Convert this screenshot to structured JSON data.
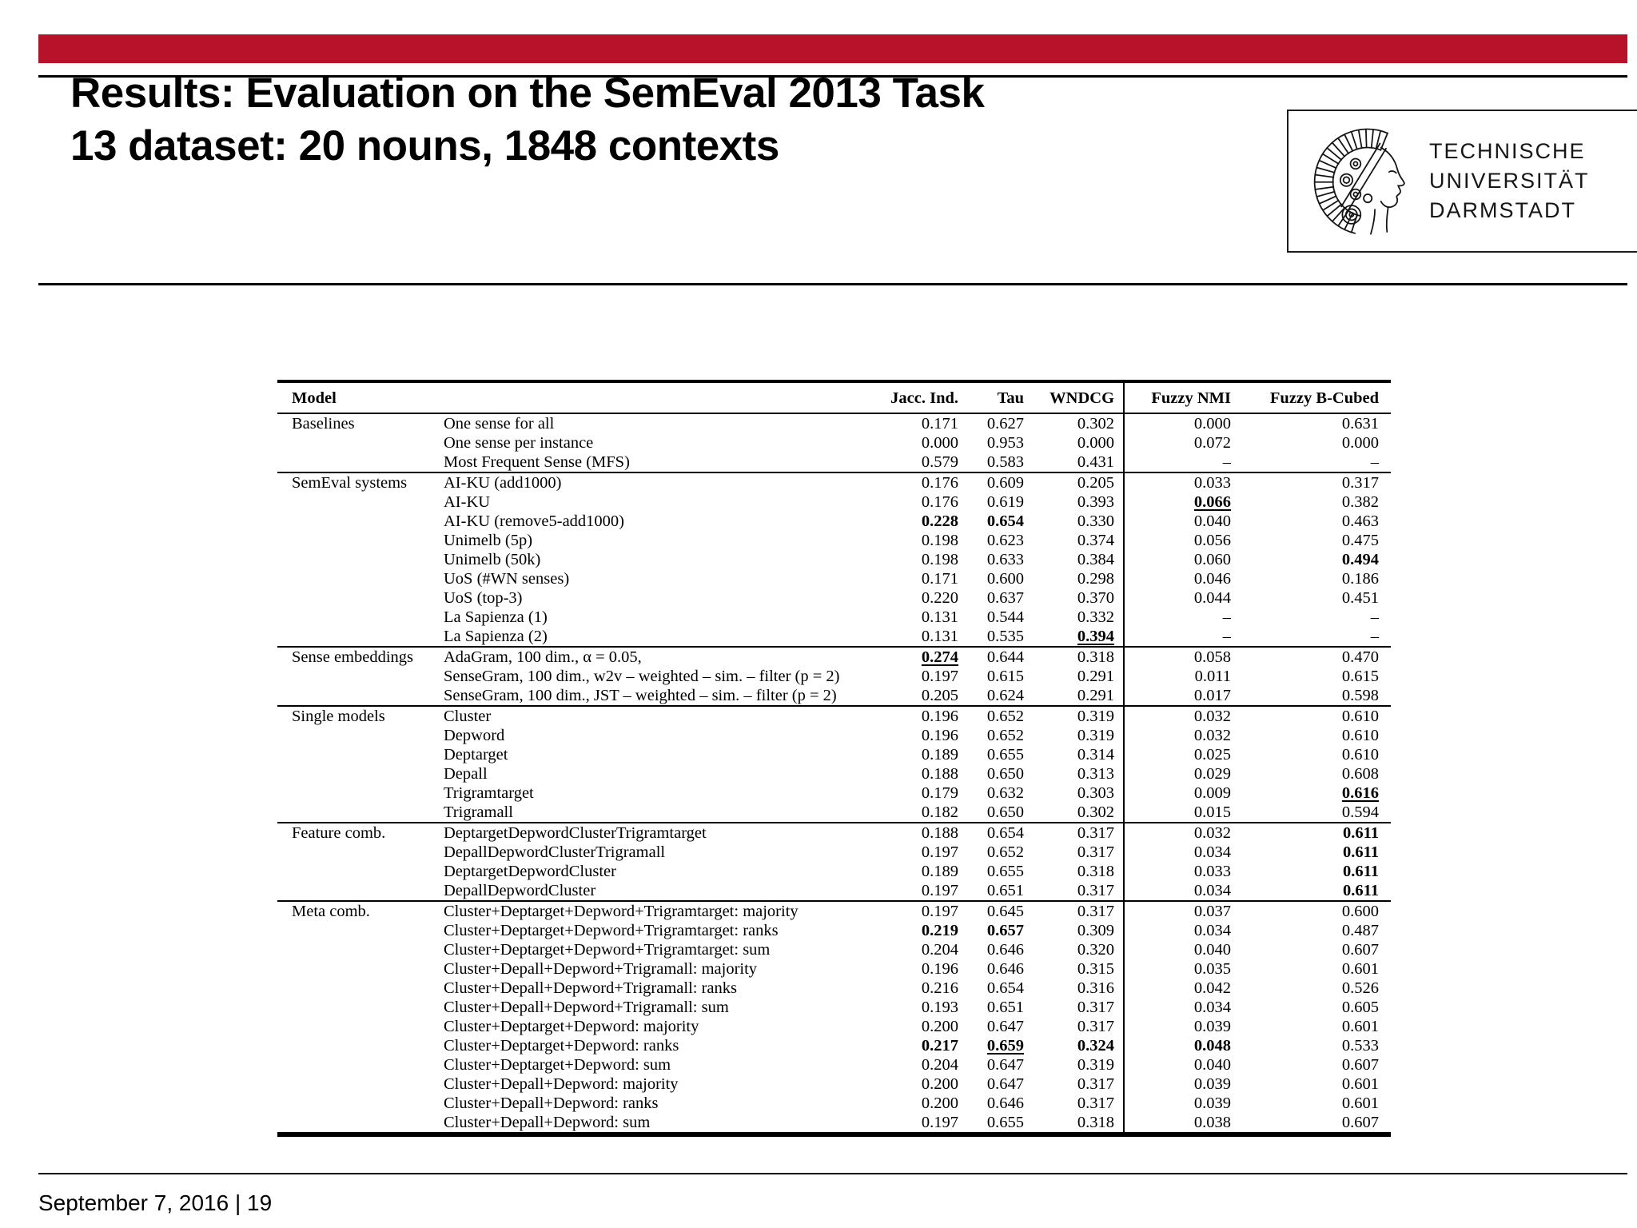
{
  "slide": {
    "accent_red": "#b8122a",
    "title_line1": "Results: Evaluation on the SemEval 2013 Task",
    "title_line2": "13 dataset: 20 nouns, 1848 contexts",
    "footer_text": "September 7, 2016 | 19",
    "footer_date": "September 7, 2016",
    "footer_page_number": "19"
  },
  "logo": {
    "line1": "TECHNISCHE",
    "line2": "UNIVERSITÄT",
    "line3": "DARMSTADT",
    "icon": "tu-darmstadt-athena-icon"
  },
  "table": {
    "header": {
      "model": "Model",
      "metrics": [
        "Jacc. Ind.",
        "Tau",
        "WNDCG",
        "Fuzzy NMI",
        "Fuzzy B-Cubed"
      ]
    },
    "sections": [
      {
        "group": "Baselines",
        "rows": [
          {
            "label": "One sense for all",
            "values": [
              "0.171",
              "0.627",
              "0.302",
              "0.000",
              "0.631"
            ],
            "styles": [
              "",
              "",
              "",
              "",
              ""
            ]
          },
          {
            "label": "One sense per instance",
            "values": [
              "0.000",
              "0.953",
              "0.000",
              "0.072",
              "0.000"
            ],
            "styles": [
              "",
              "",
              "",
              "",
              ""
            ]
          },
          {
            "label": "Most Frequent Sense (MFS)",
            "values": [
              "0.579",
              "0.583",
              "0.431",
              "–",
              "–"
            ],
            "styles": [
              "",
              "",
              "",
              "",
              ""
            ]
          }
        ]
      },
      {
        "group": "SemEval systems",
        "rows": [
          {
            "label": "AI-KU (add1000)",
            "values": [
              "0.176",
              "0.609",
              "0.205",
              "0.033",
              "0.317"
            ],
            "styles": [
              "",
              "",
              "",
              "",
              ""
            ]
          },
          {
            "label": "AI-KU",
            "values": [
              "0.176",
              "0.619",
              "0.393",
              "0.066",
              "0.382"
            ],
            "styles": [
              "",
              "",
              "",
              "bu",
              ""
            ]
          },
          {
            "label": "AI-KU (remove5-add1000)",
            "values": [
              "0.228",
              "0.654",
              "0.330",
              "0.040",
              "0.463"
            ],
            "styles": [
              "b",
              "b",
              "",
              "",
              ""
            ]
          },
          {
            "label": "Unimelb (5p)",
            "values": [
              "0.198",
              "0.623",
              "0.374",
              "0.056",
              "0.475"
            ],
            "styles": [
              "",
              "",
              "",
              "",
              ""
            ]
          },
          {
            "label": "Unimelb (50k)",
            "values": [
              "0.198",
              "0.633",
              "0.384",
              "0.060",
              "0.494"
            ],
            "styles": [
              "",
              "",
              "",
              "",
              "b"
            ]
          },
          {
            "label": "UoS (#WN senses)",
            "values": [
              "0.171",
              "0.600",
              "0.298",
              "0.046",
              "0.186"
            ],
            "styles": [
              "",
              "",
              "",
              "",
              ""
            ]
          },
          {
            "label": "UoS (top-3)",
            "values": [
              "0.220",
              "0.637",
              "0.370",
              "0.044",
              "0.451"
            ],
            "styles": [
              "",
              "",
              "",
              "",
              ""
            ]
          },
          {
            "label": "La Sapienza (1)",
            "values": [
              "0.131",
              "0.544",
              "0.332",
              "–",
              "–"
            ],
            "styles": [
              "",
              "",
              "",
              "",
              ""
            ]
          },
          {
            "label": "La Sapienza (2)",
            "values": [
              "0.131",
              "0.535",
              "0.394",
              "–",
              "–"
            ],
            "styles": [
              "",
              "",
              "bu",
              "",
              ""
            ]
          }
        ]
      },
      {
        "group": "Sense embeddings",
        "rows": [
          {
            "label": "AdaGram, 100 dim., α = 0.05,",
            "values": [
              "0.274",
              "0.644",
              "0.318",
              "0.058",
              "0.470"
            ],
            "styles": [
              "bu",
              "",
              "",
              "",
              ""
            ]
          },
          {
            "label": "SenseGram, 100 dim., w2v – weighted – sim. – filter (p = 2)",
            "values": [
              "0.197",
              "0.615",
              "0.291",
              "0.011",
              "0.615"
            ],
            "styles": [
              "",
              "",
              "",
              "",
              ""
            ]
          },
          {
            "label": "SenseGram, 100 dim., JST – weighted – sim. – filter (p = 2)",
            "values": [
              "0.205",
              "0.624",
              "0.291",
              "0.017",
              "0.598"
            ],
            "styles": [
              "",
              "",
              "",
              "",
              ""
            ]
          }
        ]
      },
      {
        "group": "Single models",
        "rows": [
          {
            "label": "Cluster",
            "values": [
              "0.196",
              "0.652",
              "0.319",
              "0.032",
              "0.610"
            ],
            "styles": [
              "",
              "",
              "",
              "",
              ""
            ]
          },
          {
            "label": "Depword",
            "values": [
              "0.196",
              "0.652",
              "0.319",
              "0.032",
              "0.610"
            ],
            "styles": [
              "",
              "",
              "",
              "",
              ""
            ]
          },
          {
            "label": "Deptarget",
            "values": [
              "0.189",
              "0.655",
              "0.314",
              "0.025",
              "0.610"
            ],
            "styles": [
              "",
              "",
              "",
              "",
              ""
            ]
          },
          {
            "label": "Depall",
            "values": [
              "0.188",
              "0.650",
              "0.313",
              "0.029",
              "0.608"
            ],
            "styles": [
              "",
              "",
              "",
              "",
              ""
            ]
          },
          {
            "label": "Trigramtarget",
            "values": [
              "0.179",
              "0.632",
              "0.303",
              "0.009",
              "0.616"
            ],
            "styles": [
              "",
              "",
              "",
              "",
              "bu"
            ]
          },
          {
            "label": "Trigramall",
            "values": [
              "0.182",
              "0.650",
              "0.302",
              "0.015",
              "0.594"
            ],
            "styles": [
              "",
              "",
              "",
              "",
              ""
            ]
          }
        ]
      },
      {
        "group": "Feature comb.",
        "rows": [
          {
            "label": "DeptargetDepwordClusterTrigramtarget",
            "values": [
              "0.188",
              "0.654",
              "0.317",
              "0.032",
              "0.611"
            ],
            "styles": [
              "",
              "",
              "",
              "",
              "b"
            ]
          },
          {
            "label": "DepallDepwordClusterTrigramall",
            "values": [
              "0.197",
              "0.652",
              "0.317",
              "0.034",
              "0.611"
            ],
            "styles": [
              "",
              "",
              "",
              "",
              "b"
            ]
          },
          {
            "label": "DeptargetDepwordCluster",
            "values": [
              "0.189",
              "0.655",
              "0.318",
              "0.033",
              "0.611"
            ],
            "styles": [
              "",
              "",
              "",
              "",
              "b"
            ]
          },
          {
            "label": "DepallDepwordCluster",
            "values": [
              "0.197",
              "0.651",
              "0.317",
              "0.034",
              "0.611"
            ],
            "styles": [
              "",
              "",
              "",
              "",
              "b"
            ]
          }
        ]
      },
      {
        "group": "Meta comb.",
        "rows": [
          {
            "label": "Cluster+Deptarget+Depword+Trigramtarget: majority",
            "values": [
              "0.197",
              "0.645",
              "0.317",
              "0.037",
              "0.600"
            ],
            "styles": [
              "",
              "",
              "",
              "",
              ""
            ]
          },
          {
            "label": "Cluster+Deptarget+Depword+Trigramtarget: ranks",
            "values": [
              "0.219",
              "0.657",
              "0.309",
              "0.034",
              "0.487"
            ],
            "styles": [
              "b",
              "b",
              "",
              "",
              ""
            ]
          },
          {
            "label": "Cluster+Deptarget+Depword+Trigramtarget: sum",
            "values": [
              "0.204",
              "0.646",
              "0.320",
              "0.040",
              "0.607"
            ],
            "styles": [
              "",
              "",
              "",
              "",
              ""
            ]
          },
          {
            "label": "Cluster+Depall+Depword+Trigramall: majority",
            "values": [
              "0.196",
              "0.646",
              "0.315",
              "0.035",
              "0.601"
            ],
            "styles": [
              "",
              "",
              "",
              "",
              ""
            ]
          },
          {
            "label": "Cluster+Depall+Depword+Trigramall: ranks",
            "values": [
              "0.216",
              "0.654",
              "0.316",
              "0.042",
              "0.526"
            ],
            "styles": [
              "",
              "",
              "",
              "",
              ""
            ]
          },
          {
            "label": "Cluster+Depall+Depword+Trigramall: sum",
            "values": [
              "0.193",
              "0.651",
              "0.317",
              "0.034",
              "0.605"
            ],
            "styles": [
              "",
              "",
              "",
              "",
              ""
            ]
          },
          {
            "label": "Cluster+Deptarget+Depword: majority",
            "values": [
              "0.200",
              "0.647",
              "0.317",
              "0.039",
              "0.601"
            ],
            "styles": [
              "",
              "",
              "",
              "",
              ""
            ]
          },
          {
            "label": "Cluster+Deptarget+Depword: ranks",
            "values": [
              "0.217",
              "0.659",
              "0.324",
              "0.048",
              "0.533"
            ],
            "styles": [
              "b",
              "bu",
              "b",
              "b",
              ""
            ]
          },
          {
            "label": "Cluster+Deptarget+Depword: sum",
            "values": [
              "0.204",
              "0.647",
              "0.319",
              "0.040",
              "0.607"
            ],
            "styles": [
              "",
              "",
              "",
              "",
              ""
            ]
          },
          {
            "label": "Cluster+Depall+Depword: majority",
            "values": [
              "0.200",
              "0.647",
              "0.317",
              "0.039",
              "0.601"
            ],
            "styles": [
              "",
              "",
              "",
              "",
              ""
            ]
          },
          {
            "label": "Cluster+Depall+Depword: ranks",
            "values": [
              "0.200",
              "0.646",
              "0.317",
              "0.039",
              "0.601"
            ],
            "styles": [
              "",
              "",
              "",
              "",
              ""
            ]
          },
          {
            "label": "Cluster+Depall+Depword: sum",
            "values": [
              "0.197",
              "0.655",
              "0.318",
              "0.038",
              "0.607"
            ],
            "styles": [
              "",
              "",
              "",
              "",
              ""
            ]
          }
        ]
      }
    ]
  }
}
